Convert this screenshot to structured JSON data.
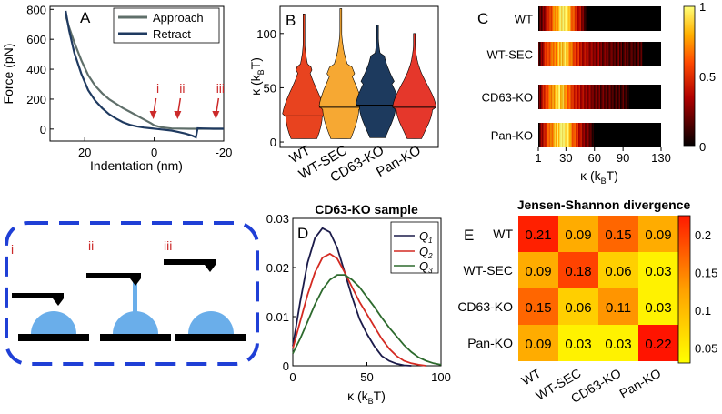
{
  "chart_data": [
    {
      "panel": "A",
      "type": "line",
      "ylabel": "Force (pN)",
      "xlabel": "Indentation (nm)",
      "xlim": [
        30,
        -20
      ],
      "ylim": [
        -80,
        820
      ],
      "xticks": [
        20,
        0,
        -20
      ],
      "yticks": [
        0,
        200,
        400,
        600,
        800
      ],
      "series": [
        {
          "name": "Approach",
          "color": "#5f6f6a",
          "x": [
            25.5,
            24.5,
            23,
            21,
            19,
            17,
            15,
            13,
            11,
            9,
            7,
            5,
            3,
            1,
            0,
            -2,
            -5,
            -10,
            -15,
            -20
          ],
          "y": [
            760,
            680,
            580,
            460,
            360,
            290,
            240,
            200,
            170,
            140,
            115,
            90,
            65,
            40,
            25,
            12,
            4,
            2,
            2,
            2
          ]
        },
        {
          "name": "Retract",
          "color": "#1f3a60",
          "x": [
            25.5,
            24.5,
            23,
            21,
            19,
            17,
            15,
            13,
            11,
            9,
            7,
            5,
            3,
            1,
            -1,
            -3,
            -5,
            -7,
            -9,
            -11,
            -12,
            -12.5,
            -14,
            -17,
            -20
          ],
          "y": [
            790,
            660,
            510,
            370,
            260,
            190,
            140,
            100,
            70,
            45,
            28,
            18,
            10,
            5,
            0,
            -5,
            -10,
            -20,
            -30,
            -45,
            -55,
            5,
            4,
            2,
            2
          ]
        }
      ],
      "annotations": [
        {
          "text": "i",
          "x": 0,
          "y": 0
        },
        {
          "text": "ii",
          "x": -7,
          "y": 0
        },
        {
          "text": "iii",
          "x": -18,
          "y": 0
        }
      ]
    },
    {
      "panel": "B",
      "type": "violin",
      "ylabel": "κ (kBT)",
      "ylim": [
        -5,
        125
      ],
      "yticks": [
        0,
        50,
        100
      ],
      "categories": [
        "WT",
        "WT-SEC",
        "CD63-KO",
        "Pan-KO"
      ],
      "colors": [
        "#e8431f",
        "#f6a833",
        "#1d3a5e",
        "#e5372b"
      ],
      "medians": [
        24,
        32,
        34,
        32
      ],
      "ranges": [
        [
          3,
          118
        ],
        [
          3,
          123
        ],
        [
          4,
          108
        ],
        [
          3,
          100
        ]
      ]
    },
    {
      "panel": "C",
      "type": "heatmap",
      "xlabel": "κ (kBT)",
      "xlim": [
        1,
        130
      ],
      "xticks": [
        1,
        30,
        60,
        90,
        130
      ],
      "rows": [
        "WT",
        "WT-SEC",
        "CD63-KO",
        "Pan-KO"
      ],
      "colorbar_ticks": [
        0,
        0.5,
        1
      ]
    },
    {
      "panel": "D",
      "type": "line",
      "title": "CD63-KO sample",
      "xlabel": "κ (kBT)",
      "xlim": [
        0,
        100
      ],
      "ylim": [
        0,
        0.03
      ],
      "xticks": [
        0,
        50,
        100
      ],
      "yticks": [
        0,
        0.01,
        0.02,
        0.03
      ],
      "series": [
        {
          "name": "Q1",
          "color": "#1b1b4a",
          "x": [
            0,
            5,
            10,
            15,
            20,
            25,
            30,
            35,
            40,
            45,
            50,
            55,
            60,
            65,
            70,
            75,
            80
          ],
          "y": [
            0.004,
            0.013,
            0.021,
            0.026,
            0.028,
            0.0272,
            0.024,
            0.019,
            0.014,
            0.0095,
            0.0065,
            0.004,
            0.002,
            0.001,
            0.0004,
            0.0001,
            0
          ]
        },
        {
          "name": "Q2",
          "color": "#d42a22",
          "x": [
            0,
            5,
            10,
            15,
            20,
            25,
            30,
            35,
            40,
            45,
            50,
            55,
            60,
            65,
            70,
            75,
            80,
            85,
            90
          ],
          "y": [
            0.0035,
            0.009,
            0.0145,
            0.019,
            0.022,
            0.0228,
            0.0218,
            0.019,
            0.016,
            0.013,
            0.0105,
            0.008,
            0.0055,
            0.0035,
            0.002,
            0.001,
            0.0005,
            0.0002,
            0
          ]
        },
        {
          "name": "Q3",
          "color": "#2d6a2d",
          "x": [
            0,
            5,
            10,
            15,
            20,
            25,
            30,
            35,
            40,
            45,
            50,
            55,
            60,
            65,
            70,
            75,
            80,
            85,
            90,
            95,
            100
          ],
          "y": [
            0.0025,
            0.0055,
            0.009,
            0.0125,
            0.0155,
            0.0175,
            0.0185,
            0.0185,
            0.0175,
            0.016,
            0.014,
            0.012,
            0.0098,
            0.0078,
            0.006,
            0.0042,
            0.0028,
            0.0017,
            0.001,
            0.0005,
            0.0002
          ]
        }
      ]
    },
    {
      "panel": "E",
      "type": "heatmap",
      "title": "Jensen-Shannon divergence",
      "rows": [
        "WT",
        "WT-SEC",
        "CD63-KO",
        "Pan-KO"
      ],
      "cols": [
        "WT",
        "WT-SEC",
        "CD63-KO",
        "Pan-KO"
      ],
      "values": [
        [
          0.21,
          0.09,
          0.15,
          0.09
        ],
        [
          0.09,
          0.18,
          0.06,
          0.03
        ],
        [
          0.15,
          0.06,
          0.11,
          0.03
        ],
        [
          0.09,
          0.03,
          0.03,
          0.22
        ]
      ],
      "labels": [
        [
          "0.21",
          "0.09",
          "0.15",
          "0.09"
        ],
        [
          "0.09",
          "0.18",
          "0.06",
          "0.03"
        ],
        [
          "0.15",
          "0.06",
          "0.11",
          "0.03"
        ],
        [
          "0.09",
          "0.03",
          "0.03",
          "0.22"
        ]
      ],
      "vmin": 0.03,
      "vmax": 0.22,
      "colorbar_ticks": [
        0.05,
        0.1,
        0.15,
        0.2
      ]
    }
  ],
  "text": {
    "panel_a_label": "A",
    "panel_b_label": "B",
    "panel_c_label": "C",
    "panel_d_label": "D",
    "panel_e_label": "E",
    "legend_approach": "Approach",
    "legend_retract": "Retract",
    "a_ylabel": "Force (pN)",
    "a_xlabel": "Indentation (nm)",
    "b_kappa": "κ (k",
    "b_sub": "B",
    "b_tail": "T)",
    "c_kappa": "κ (k",
    "c_sub": "B",
    "c_tail": "T)",
    "d_title": "CD63-KO sample",
    "d_kappa": "κ (k",
    "d_sub": "B",
    "d_tail": "T)",
    "d_legend_q": "Q",
    "d_legend_sub1": "1",
    "d_legend_sub2": "2",
    "d_legend_sub3": "3",
    "e_title": "Jensen-Shannon divergence",
    "diagram_i": "i",
    "diagram_ii": "ii",
    "diagram_iii": "iii"
  },
  "colors": {
    "diagram_border": "#1f3fd6",
    "cantilever": "#000000",
    "vesicle": "#6aaeea",
    "annotation_red": "#cc2a2a"
  }
}
